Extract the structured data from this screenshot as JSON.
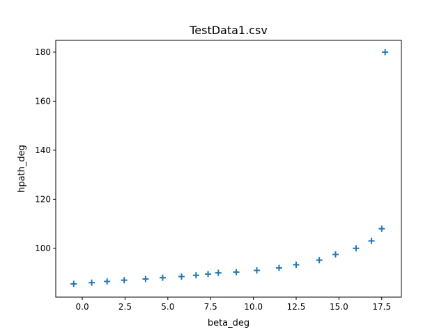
{
  "chart_data": {
    "type": "scatter",
    "title": "TestData1.csv",
    "xlabel": "beta_deg",
    "ylabel": "hpath_deg",
    "xlim": [
      -1.55,
      18.65
    ],
    "ylim": [
      80.1,
      184.8
    ],
    "xticks": [
      0.0,
      2.5,
      5.0,
      7.5,
      10.0,
      12.5,
      15.0,
      17.5
    ],
    "xtick_labels": [
      "0.0",
      "2.5",
      "5.0",
      "7.5",
      "10.0",
      "12.5",
      "15.0",
      "17.5"
    ],
    "yticks": [
      100,
      120,
      140,
      160,
      180
    ],
    "ytick_labels": [
      "100",
      "120",
      "140",
      "160",
      "180"
    ],
    "grid": false,
    "marker": "+",
    "color": "#1f77b4",
    "series": [
      {
        "name": "",
        "x": [
          -0.5,
          0.55,
          1.45,
          2.45,
          3.7,
          4.7,
          5.8,
          6.65,
          7.35,
          7.95,
          9.0,
          10.2,
          11.5,
          12.5,
          13.85,
          14.8,
          16.0,
          16.9,
          17.5,
          17.7
        ],
        "y": [
          85.5,
          86.0,
          86.5,
          87.0,
          87.5,
          88.0,
          88.5,
          89.0,
          89.5,
          90.0,
          90.3,
          91.0,
          92.0,
          93.3,
          95.2,
          97.5,
          100.0,
          103.0,
          108.0,
          180.0
        ]
      }
    ]
  }
}
